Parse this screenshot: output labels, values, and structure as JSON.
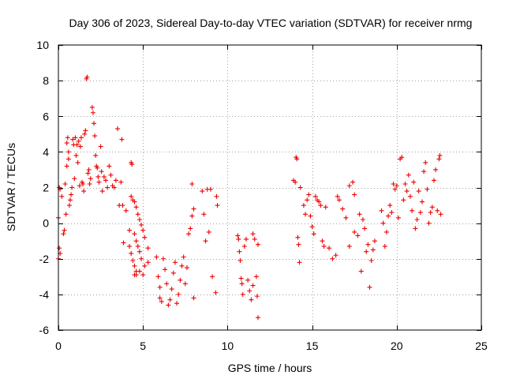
{
  "chart_data": {
    "type": "scatter",
    "title": "Day 306 of 2023, Sidereal Day-to-day VTEC variation (SDTVAR) for receiver nrmg",
    "xlabel": "GPS time / hours",
    "ylabel": "SDTVAR / TECUs",
    "xlim": [
      0,
      25
    ],
    "ylim": [
      -6,
      10
    ],
    "xticks": [
      0,
      5,
      10,
      15,
      20,
      25
    ],
    "yticks": [
      -6,
      -4,
      -2,
      0,
      2,
      4,
      6,
      8,
      10
    ],
    "xtick_labels": [
      "0",
      "5",
      "10",
      "15",
      "20",
      "25"
    ],
    "ytick_labels": [
      "-6",
      "-4",
      "-2",
      "0",
      "2",
      "4",
      "6",
      "8",
      "10"
    ],
    "grid": true,
    "marker": "+",
    "color": "#ee0000",
    "series": [
      {
        "name": "SDTVAR",
        "points": [
          [
            0.0,
            0.3
          ],
          [
            0.05,
            2.0
          ],
          [
            0.1,
            1.9
          ],
          [
            0.05,
            -1.4
          ],
          [
            0.0,
            -2.0
          ],
          [
            0.1,
            -1.7
          ],
          [
            0.2,
            1.5
          ],
          [
            0.3,
            -0.6
          ],
          [
            0.35,
            -0.4
          ],
          [
            0.4,
            2.2
          ],
          [
            0.45,
            0.5
          ],
          [
            0.5,
            3.2
          ],
          [
            0.5,
            4.5
          ],
          [
            0.55,
            4.8
          ],
          [
            0.6,
            4.0
          ],
          [
            0.6,
            3.6
          ],
          [
            0.65,
            1.0
          ],
          [
            0.7,
            1.3
          ],
          [
            0.75,
            1.6
          ],
          [
            0.8,
            2.0
          ],
          [
            0.85,
            4.7
          ],
          [
            0.9,
            4.4
          ],
          [
            0.95,
            2.5
          ],
          [
            1.0,
            4.8
          ],
          [
            1.05,
            3.8
          ],
          [
            1.1,
            4.4
          ],
          [
            1.15,
            3.4
          ],
          [
            1.2,
            4.6
          ],
          [
            1.25,
            2.1
          ],
          [
            1.3,
            4.3
          ],
          [
            1.35,
            4.8
          ],
          [
            1.4,
            2.3
          ],
          [
            1.45,
            2.2
          ],
          [
            1.5,
            1.8
          ],
          [
            1.55,
            5.0
          ],
          [
            1.6,
            5.2
          ],
          [
            1.65,
            8.1
          ],
          [
            1.7,
            8.2
          ],
          [
            1.75,
            2.8
          ],
          [
            1.8,
            3.0
          ],
          [
            1.85,
            2.2
          ],
          [
            1.9,
            2.5
          ],
          [
            2.0,
            6.5
          ],
          [
            2.05,
            6.2
          ],
          [
            2.1,
            5.6
          ],
          [
            2.15,
            4.9
          ],
          [
            2.2,
            3.8
          ],
          [
            2.25,
            3.2
          ],
          [
            2.3,
            3.1
          ],
          [
            2.35,
            2.6
          ],
          [
            2.4,
            2.3
          ],
          [
            2.5,
            4.3
          ],
          [
            2.55,
            2.9
          ],
          [
            2.6,
            1.8
          ],
          [
            2.7,
            2.6
          ],
          [
            2.8,
            2.4
          ],
          [
            2.9,
            2.0
          ],
          [
            3.0,
            3.2
          ],
          [
            3.1,
            2.7
          ],
          [
            3.2,
            2.1
          ],
          [
            3.3,
            2.0
          ],
          [
            3.4,
            2.4
          ],
          [
            3.5,
            5.3
          ],
          [
            3.6,
            1.0
          ],
          [
            3.7,
            2.3
          ],
          [
            3.75,
            4.7
          ],
          [
            3.8,
            1.0
          ],
          [
            3.85,
            -1.1
          ],
          [
            4.0,
            0.7
          ],
          [
            4.2,
            -0.4
          ],
          [
            4.3,
            3.4
          ],
          [
            4.35,
            3.3
          ],
          [
            4.3,
            1.5
          ],
          [
            4.4,
            1.3
          ],
          [
            4.5,
            1.2
          ],
          [
            4.6,
            0.9
          ],
          [
            4.7,
            0.5
          ],
          [
            4.8,
            0.2
          ],
          [
            4.9,
            -0.1
          ],
          [
            5.0,
            -0.4
          ],
          [
            5.1,
            -0.8
          ],
          [
            4.2,
            -1.3
          ],
          [
            4.3,
            -1.7
          ],
          [
            4.4,
            -2.1
          ],
          [
            4.5,
            -2.4
          ],
          [
            4.6,
            -2.7
          ],
          [
            4.5,
            -2.9
          ],
          [
            4.6,
            -2.9
          ],
          [
            4.8,
            -2.7
          ],
          [
            5.0,
            -2.9
          ],
          [
            4.5,
            -0.6
          ],
          [
            4.6,
            -1.0
          ],
          [
            4.7,
            -1.3
          ],
          [
            4.8,
            -1.6
          ],
          [
            4.9,
            -2.0
          ],
          [
            5.1,
            -2.4
          ],
          [
            5.3,
            -1.4
          ],
          [
            5.3,
            -2.2
          ],
          [
            5.8,
            -1.9
          ],
          [
            5.9,
            -3.0
          ],
          [
            6.0,
            -3.6
          ],
          [
            6.0,
            -4.2
          ],
          [
            6.1,
            -4.4
          ],
          [
            6.2,
            -2.0
          ],
          [
            6.3,
            -2.6
          ],
          [
            6.4,
            -3.4
          ],
          [
            6.5,
            -4.6
          ],
          [
            6.6,
            -4.3
          ],
          [
            6.7,
            -3.7
          ],
          [
            6.8,
            -2.8
          ],
          [
            6.9,
            -2.2
          ],
          [
            7.0,
            -4.5
          ],
          [
            7.1,
            -4.0
          ],
          [
            7.2,
            -3.2
          ],
          [
            7.3,
            -2.4
          ],
          [
            7.4,
            -1.9
          ],
          [
            7.5,
            -3.4
          ],
          [
            7.6,
            -2.5
          ],
          [
            7.7,
            -0.6
          ],
          [
            7.8,
            -0.3
          ],
          [
            7.9,
            2.2
          ],
          [
            8.0,
            -4.2
          ],
          [
            7.9,
            0.4
          ],
          [
            8.0,
            0.8
          ],
          [
            8.5,
            1.8
          ],
          [
            8.6,
            0.5
          ],
          [
            8.7,
            -1.0
          ],
          [
            8.8,
            1.9
          ],
          [
            8.9,
            -0.5
          ],
          [
            9.0,
            1.9
          ],
          [
            9.1,
            -3.0
          ],
          [
            9.3,
            -3.9
          ],
          [
            9.35,
            1.5
          ],
          [
            9.4,
            1.0
          ],
          [
            10.6,
            -0.7
          ],
          [
            10.65,
            -0.9
          ],
          [
            10.7,
            -1.6
          ],
          [
            10.75,
            -2.1
          ],
          [
            10.8,
            -3.1
          ],
          [
            10.85,
            -3.4
          ],
          [
            10.9,
            -4.0
          ],
          [
            11.0,
            -1.3
          ],
          [
            11.1,
            -0.9
          ],
          [
            11.2,
            -3.2
          ],
          [
            11.3,
            -3.8
          ],
          [
            11.4,
            -4.3
          ],
          [
            11.5,
            -3.5
          ],
          [
            11.5,
            -0.6
          ],
          [
            11.6,
            -0.9
          ],
          [
            11.7,
            -3.0
          ],
          [
            11.75,
            -4.1
          ],
          [
            11.8,
            -5.3
          ],
          [
            11.8,
            -1.2
          ],
          [
            13.9,
            2.4
          ],
          [
            14.0,
            2.3
          ],
          [
            14.05,
            3.7
          ],
          [
            14.1,
            3.6
          ],
          [
            14.15,
            -0.8
          ],
          [
            14.2,
            -1.2
          ],
          [
            14.25,
            -2.2
          ],
          [
            14.3,
            2.0
          ],
          [
            14.5,
            1.0
          ],
          [
            14.6,
            0.5
          ],
          [
            14.7,
            1.3
          ],
          [
            14.8,
            1.6
          ],
          [
            14.9,
            0.4
          ],
          [
            15.0,
            -0.2
          ],
          [
            15.1,
            -0.6
          ],
          [
            15.2,
            1.5
          ],
          [
            15.3,
            1.3
          ],
          [
            15.4,
            1.2
          ],
          [
            15.5,
            1.0
          ],
          [
            15.6,
            -1.0
          ],
          [
            15.7,
            -1.3
          ],
          [
            15.8,
            0.9
          ],
          [
            16.0,
            -1.4
          ],
          [
            16.2,
            -2.0
          ],
          [
            16.4,
            -1.8
          ],
          [
            16.5,
            1.5
          ],
          [
            16.6,
            1.3
          ],
          [
            16.8,
            0.8
          ],
          [
            17.0,
            0.3
          ],
          [
            17.2,
            2.1
          ],
          [
            17.4,
            2.3
          ],
          [
            17.5,
            1.6
          ],
          [
            17.2,
            -1.3
          ],
          [
            17.5,
            -0.5
          ],
          [
            17.7,
            -0.7
          ],
          [
            17.8,
            0.5
          ],
          [
            17.9,
            -2.7
          ],
          [
            18.0,
            0.2
          ],
          [
            18.1,
            -0.3
          ],
          [
            18.2,
            -1.6
          ],
          [
            18.3,
            -1.2
          ],
          [
            18.4,
            -3.6
          ],
          [
            18.5,
            -2.1
          ],
          [
            18.6,
            -1.5
          ],
          [
            18.7,
            -1.0
          ],
          [
            19.1,
            0.7
          ],
          [
            19.2,
            0.0
          ],
          [
            19.3,
            -1.3
          ],
          [
            19.4,
            -0.5
          ],
          [
            19.5,
            0.4
          ],
          [
            19.6,
            1.0
          ],
          [
            19.7,
            0.6
          ],
          [
            19.8,
            2.2
          ],
          [
            19.9,
            1.9
          ],
          [
            20.0,
            2.1
          ],
          [
            20.1,
            0.3
          ],
          [
            20.2,
            3.6
          ],
          [
            20.3,
            3.7
          ],
          [
            20.4,
            1.3
          ],
          [
            20.5,
            2.2
          ],
          [
            20.6,
            1.8
          ],
          [
            20.7,
            2.7
          ],
          [
            20.8,
            1.5
          ],
          [
            20.9,
            0.7
          ],
          [
            21.0,
            2.3
          ],
          [
            21.1,
            -0.3
          ],
          [
            21.2,
            0.2
          ],
          [
            21.3,
            1.8
          ],
          [
            21.4,
            0.6
          ],
          [
            21.5,
            1.2
          ],
          [
            21.6,
            2.9
          ],
          [
            21.7,
            3.4
          ],
          [
            21.8,
            1.9
          ],
          [
            21.9,
            0.0
          ],
          [
            22.0,
            0.6
          ],
          [
            22.1,
            0.9
          ],
          [
            22.2,
            2.4
          ],
          [
            22.3,
            3.0
          ],
          [
            22.4,
            0.7
          ],
          [
            22.5,
            3.6
          ],
          [
            22.55,
            3.8
          ],
          [
            22.6,
            0.5
          ]
        ]
      }
    ]
  }
}
